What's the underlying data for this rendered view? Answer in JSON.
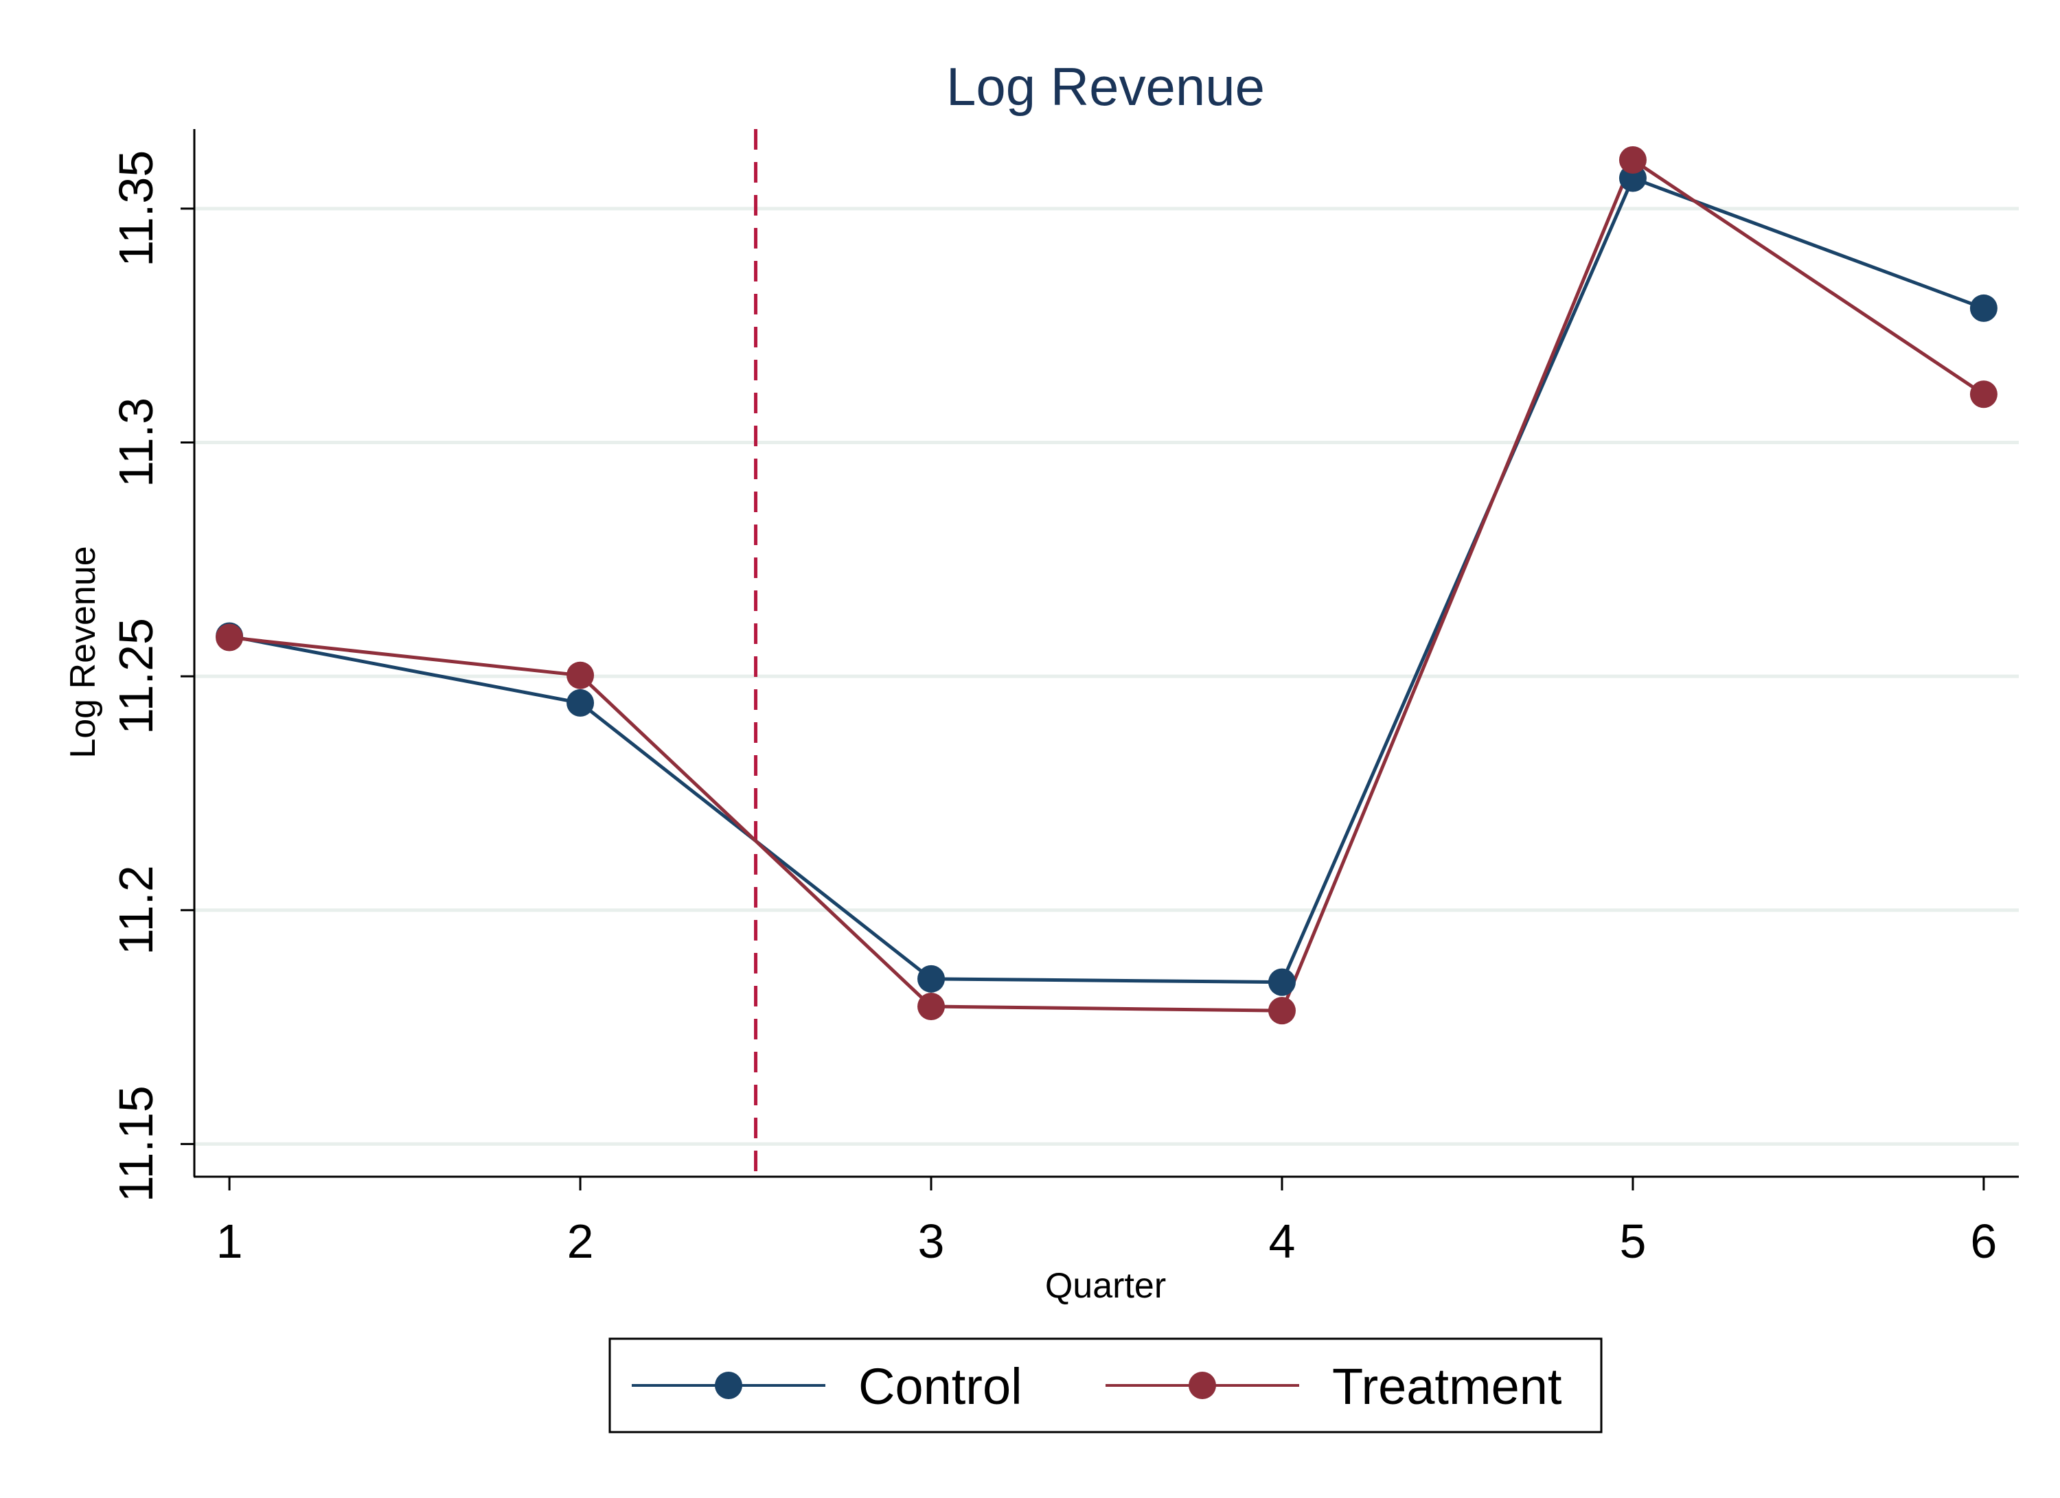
{
  "chart_data": {
    "type": "line",
    "title": "Log Revenue",
    "xlabel": "Quarter",
    "ylabel": "Log Revenue",
    "x": [
      1,
      2,
      3,
      4,
      5,
      6
    ],
    "xlim": [
      0.9,
      6.1
    ],
    "ylim": [
      11.143,
      11.367
    ],
    "xticks": [
      1,
      2,
      3,
      4,
      5,
      6
    ],
    "yticks": [
      11.15,
      11.2,
      11.25,
      11.3,
      11.35
    ],
    "xtick_labels": [
      "1",
      "2",
      "3",
      "4",
      "5",
      "6"
    ],
    "ytick_labels": [
      "11.15",
      "11.2",
      "11.25",
      "11.3",
      "11.35"
    ],
    "grid": "horizontal",
    "reference_line": {
      "x": 2.5,
      "style": "dashed",
      "color": "#b5183f"
    },
    "series": [
      {
        "name": "Control",
        "color": "#1a4368",
        "values": [
          11.2586,
          11.2443,
          11.1853,
          11.1846,
          11.3565,
          11.3287
        ]
      },
      {
        "name": "Treatment",
        "color": "#8e2f3b",
        "values": [
          11.2583,
          11.2502,
          11.1794,
          11.1785,
          11.3604,
          11.3103
        ]
      }
    ],
    "legend": {
      "position": "bottom"
    }
  },
  "colors": {
    "title": "#1a3458",
    "grid": "#e8efec",
    "axis": "#000000"
  }
}
